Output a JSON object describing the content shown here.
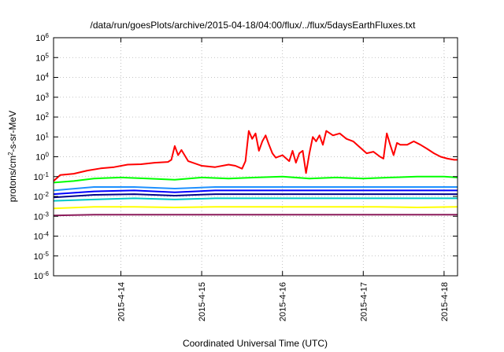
{
  "chart_data": {
    "type": "line",
    "title": "/data/run/goesPlots/archive/2015-04-18/04:00/flux/../flux/5daysEarthFluxes.txt",
    "xlabel": "Coordinated Universal Time (UTC)",
    "ylabel": {
      "prefix": "protons/cm",
      "sup": "2",
      "suffix": "-s-sr-MeV"
    },
    "y_scale": "log",
    "ylim": [
      1e-06,
      1000000.0
    ],
    "y_ticks": [
      {
        "value": 1e-06,
        "base": "10",
        "exp": "-6"
      },
      {
        "value": 1e-05,
        "base": "10",
        "exp": "-5"
      },
      {
        "value": 0.0001,
        "base": "10",
        "exp": "-4"
      },
      {
        "value": 0.001,
        "base": "10",
        "exp": "-3"
      },
      {
        "value": 0.01,
        "base": "10",
        "exp": "-2"
      },
      {
        "value": 0.1,
        "base": "10",
        "exp": "-1"
      },
      {
        "value": 1,
        "base": "10",
        "exp": "0"
      },
      {
        "value": 10,
        "base": "10",
        "exp": "1"
      },
      {
        "value": 100,
        "base": "10",
        "exp": "2"
      },
      {
        "value": 1000,
        "base": "10",
        "exp": "3"
      },
      {
        "value": 10000,
        "base": "10",
        "exp": "4"
      },
      {
        "value": 100000,
        "base": "10",
        "exp": "5"
      },
      {
        "value": 1000000,
        "base": "10",
        "exp": "6"
      }
    ],
    "xlim": [
      "2015-04-13T04:00",
      "2015-04-18T04:00"
    ],
    "x_ticks": [
      {
        "value": "2015-04-14T00:00",
        "label": "2015-4-14"
      },
      {
        "value": "2015-04-15T00:00",
        "label": "2015-4-15"
      },
      {
        "value": "2015-04-16T00:00",
        "label": "2015-4-16"
      },
      {
        "value": "2015-04-17T00:00",
        "label": "2015-4-17"
      },
      {
        "value": "2015-04-18T00:00",
        "label": "2015-4-18"
      }
    ],
    "grid": "dotted",
    "legend": "none",
    "series": [
      {
        "color": "#ff0000",
        "points": [
          [
            "2015-04-13T04:00",
            0.06
          ],
          [
            "2015-04-13T06:00",
            0.12
          ],
          [
            "2015-04-13T10:00",
            0.14
          ],
          [
            "2015-04-13T14:00",
            0.2
          ],
          [
            "2015-04-13T18:00",
            0.26
          ],
          [
            "2015-04-13T22:00",
            0.3
          ],
          [
            "2015-04-14T02:00",
            0.4
          ],
          [
            "2015-04-14T06:00",
            0.42
          ],
          [
            "2015-04-14T10:00",
            0.5
          ],
          [
            "2015-04-14T14:00",
            0.55
          ],
          [
            "2015-04-14T15:00",
            0.7
          ],
          [
            "2015-04-14T16:00",
            3.5
          ],
          [
            "2015-04-14T17:00",
            1.2
          ],
          [
            "2015-04-14T18:00",
            2.2
          ],
          [
            "2015-04-14T20:00",
            0.6
          ],
          [
            "2015-04-15T00:00",
            0.35
          ],
          [
            "2015-04-15T04:00",
            0.3
          ],
          [
            "2015-04-15T08:00",
            0.4
          ],
          [
            "2015-04-15T10:00",
            0.35
          ],
          [
            "2015-04-15T12:00",
            0.25
          ],
          [
            "2015-04-15T13:00",
            0.6
          ],
          [
            "2015-04-15T14:00",
            20
          ],
          [
            "2015-04-15T15:00",
            8
          ],
          [
            "2015-04-15T16:00",
            15
          ],
          [
            "2015-04-15T17:00",
            2
          ],
          [
            "2015-04-15T18:00",
            6
          ],
          [
            "2015-04-15T19:00",
            12
          ],
          [
            "2015-04-15T20:00",
            4
          ],
          [
            "2015-04-15T21:00",
            1.5
          ],
          [
            "2015-04-15T22:00",
            0.9
          ],
          [
            "2015-04-16T00:00",
            1.2
          ],
          [
            "2015-04-16T02:00",
            0.6
          ],
          [
            "2015-04-16T03:00",
            2
          ],
          [
            "2015-04-16T04:00",
            0.5
          ],
          [
            "2015-04-16T05:00",
            1.5
          ],
          [
            "2015-04-16T06:00",
            2
          ],
          [
            "2015-04-16T07:00",
            0.15
          ],
          [
            "2015-04-16T08:00",
            1.5
          ],
          [
            "2015-04-16T09:00",
            10
          ],
          [
            "2015-04-16T10:00",
            6
          ],
          [
            "2015-04-16T11:00",
            12
          ],
          [
            "2015-04-16T12:00",
            4
          ],
          [
            "2015-04-16T13:00",
            20
          ],
          [
            "2015-04-16T15:00",
            12
          ],
          [
            "2015-04-16T17:00",
            15
          ],
          [
            "2015-04-16T19:00",
            8
          ],
          [
            "2015-04-16T21:00",
            6
          ],
          [
            "2015-04-16T23:00",
            3
          ],
          [
            "2015-04-17T01:00",
            1.5
          ],
          [
            "2015-04-17T03:00",
            1.8
          ],
          [
            "2015-04-17T05:00",
            1.0
          ],
          [
            "2015-04-17T06:00",
            0.8
          ],
          [
            "2015-04-17T07:00",
            15
          ],
          [
            "2015-04-17T08:00",
            4
          ],
          [
            "2015-04-17T09:00",
            1.2
          ],
          [
            "2015-04-17T10:00",
            5
          ],
          [
            "2015-04-17T11:00",
            4
          ],
          [
            "2015-04-17T13:00",
            4
          ],
          [
            "2015-04-17T15:00",
            6
          ],
          [
            "2015-04-17T17:00",
            4
          ],
          [
            "2015-04-17T19:00",
            2.5
          ],
          [
            "2015-04-17T21:00",
            1.5
          ],
          [
            "2015-04-17T23:00",
            1.0
          ],
          [
            "2015-04-18T01:00",
            0.8
          ],
          [
            "2015-04-18T03:00",
            0.7
          ],
          [
            "2015-04-18T04:00",
            0.7
          ]
        ]
      },
      {
        "color": "#00ff00",
        "points": [
          [
            "2015-04-13T04:00",
            0.05
          ],
          [
            "2015-04-13T10:00",
            0.06
          ],
          [
            "2015-04-13T16:00",
            0.08
          ],
          [
            "2015-04-14T00:00",
            0.09
          ],
          [
            "2015-04-14T08:00",
            0.08
          ],
          [
            "2015-04-14T16:00",
            0.07
          ],
          [
            "2015-04-15T00:00",
            0.09
          ],
          [
            "2015-04-15T08:00",
            0.08
          ],
          [
            "2015-04-15T16:00",
            0.09
          ],
          [
            "2015-04-16T00:00",
            0.1
          ],
          [
            "2015-04-16T08:00",
            0.08
          ],
          [
            "2015-04-16T16:00",
            0.09
          ],
          [
            "2015-04-17T00:00",
            0.08
          ],
          [
            "2015-04-17T08:00",
            0.09
          ],
          [
            "2015-04-17T16:00",
            0.1
          ],
          [
            "2015-04-18T00:00",
            0.1
          ],
          [
            "2015-04-18T04:00",
            0.09
          ]
        ]
      },
      {
        "color": "#1e90ff",
        "points": [
          [
            "2015-04-13T04:00",
            0.02
          ],
          [
            "2015-04-13T16:00",
            0.03
          ],
          [
            "2015-04-14T04:00",
            0.03
          ],
          [
            "2015-04-14T16:00",
            0.025
          ],
          [
            "2015-04-15T04:00",
            0.03
          ],
          [
            "2015-04-15T16:00",
            0.03
          ],
          [
            "2015-04-16T04:00",
            0.03
          ],
          [
            "2015-04-16T16:00",
            0.03
          ],
          [
            "2015-04-17T04:00",
            0.03
          ],
          [
            "2015-04-17T16:00",
            0.03
          ],
          [
            "2015-04-18T04:00",
            0.03
          ]
        ]
      },
      {
        "color": "#0000ff",
        "points": [
          [
            "2015-04-13T04:00",
            0.013
          ],
          [
            "2015-04-13T16:00",
            0.018
          ],
          [
            "2015-04-14T04:00",
            0.02
          ],
          [
            "2015-04-14T16:00",
            0.016
          ],
          [
            "2015-04-15T04:00",
            0.02
          ],
          [
            "2015-04-15T16:00",
            0.02
          ],
          [
            "2015-04-16T04:00",
            0.02
          ],
          [
            "2015-04-16T16:00",
            0.02
          ],
          [
            "2015-04-17T04:00",
            0.02
          ],
          [
            "2015-04-17T16:00",
            0.02
          ],
          [
            "2015-04-18T04:00",
            0.02
          ]
        ]
      },
      {
        "color": "#00008b",
        "points": [
          [
            "2015-04-13T04:00",
            0.009
          ],
          [
            "2015-04-13T16:00",
            0.012
          ],
          [
            "2015-04-14T04:00",
            0.013
          ],
          [
            "2015-04-14T16:00",
            0.011
          ],
          [
            "2015-04-15T04:00",
            0.013
          ],
          [
            "2015-04-15T16:00",
            0.013
          ],
          [
            "2015-04-16T04:00",
            0.013
          ],
          [
            "2015-04-16T16:00",
            0.013
          ],
          [
            "2015-04-17T04:00",
            0.013
          ],
          [
            "2015-04-17T16:00",
            0.013
          ],
          [
            "2015-04-18T04:00",
            0.013
          ]
        ]
      },
      {
        "color": "#00c8c8",
        "points": [
          [
            "2015-04-13T04:00",
            0.006
          ],
          [
            "2015-04-13T16:00",
            0.007
          ],
          [
            "2015-04-14T04:00",
            0.008
          ],
          [
            "2015-04-14T16:00",
            0.007
          ],
          [
            "2015-04-15T04:00",
            0.008
          ],
          [
            "2015-04-15T16:00",
            0.008
          ],
          [
            "2015-04-16T04:00",
            0.008
          ],
          [
            "2015-04-16T16:00",
            0.008
          ],
          [
            "2015-04-17T04:00",
            0.008
          ],
          [
            "2015-04-17T16:00",
            0.008
          ],
          [
            "2015-04-18T04:00",
            0.008
          ]
        ]
      },
      {
        "color": "#ffff00",
        "points": [
          [
            "2015-04-13T04:00",
            0.0025
          ],
          [
            "2015-04-13T16:00",
            0.003
          ],
          [
            "2015-04-14T04:00",
            0.003
          ],
          [
            "2015-04-14T16:00",
            0.0028
          ],
          [
            "2015-04-15T04:00",
            0.003
          ],
          [
            "2015-04-15T16:00",
            0.003
          ],
          [
            "2015-04-16T04:00",
            0.003
          ],
          [
            "2015-04-16T16:00",
            0.003
          ],
          [
            "2015-04-17T04:00",
            0.003
          ],
          [
            "2015-04-17T16:00",
            0.0028
          ],
          [
            "2015-04-18T04:00",
            0.003
          ]
        ]
      },
      {
        "color": "#8b1a5a",
        "points": [
          [
            "2015-04-13T04:00",
            0.0011
          ],
          [
            "2015-04-13T16:00",
            0.0012
          ],
          [
            "2015-04-14T04:00",
            0.0012
          ],
          [
            "2015-04-14T16:00",
            0.0012
          ],
          [
            "2015-04-15T04:00",
            0.0012
          ],
          [
            "2015-04-15T16:00",
            0.0012
          ],
          [
            "2015-04-16T04:00",
            0.0012
          ],
          [
            "2015-04-16T16:00",
            0.0012
          ],
          [
            "2015-04-17T04:00",
            0.0012
          ],
          [
            "2015-04-17T16:00",
            0.0012
          ],
          [
            "2015-04-18T04:00",
            0.0012
          ]
        ]
      }
    ]
  }
}
